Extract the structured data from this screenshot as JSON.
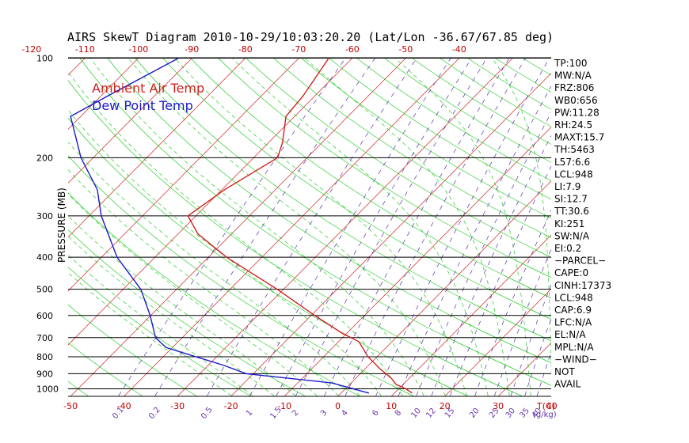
{
  "chart_data": {
    "type": "skew-t",
    "title": "AIRS SkewT Diagram 2010-10-29/10:03:20.20 (Lat/Lon -36.67/67.85 deg)",
    "ylabel": "PRESSURE (MB)",
    "xlabel_unit": "T(C)",
    "mixing_ratio_unit": "(g/kg)",
    "pressure_range": [
      1050,
      100
    ],
    "pressure_scale": "log",
    "pressure_ticks": [
      100,
      200,
      300,
      400,
      500,
      600,
      700,
      800,
      900,
      1000
    ],
    "temp_ticks_top": [
      -120,
      -110,
      -100,
      -90,
      -80,
      -70,
      -60,
      -50,
      -40
    ],
    "temp_ticks_bottom": [
      -50,
      -40,
      -30,
      -20,
      -10,
      0,
      10,
      20,
      30,
      40
    ],
    "mixing_ratio_labels": [
      "0.1",
      "0.2",
      "0.5",
      "1",
      "1.5",
      "2",
      "3",
      "4",
      "6",
      "8",
      "10",
      "12",
      "15",
      "20",
      "25",
      "30",
      "35",
      "40"
    ],
    "legend": [
      {
        "name": "Ambient Air Temp",
        "color": "#d02020"
      },
      {
        "name": "Dew Point Temp",
        "color": "#1a1acc"
      }
    ],
    "series": [
      {
        "name": "Ambient Air Temp",
        "color": "#d02020",
        "points": [
          {
            "p": 1030,
            "t": 13.3
          },
          {
            "p": 1000,
            "t": 11.3
          },
          {
            "p": 970,
            "t": 8.7
          },
          {
            "p": 930,
            "t": 6.7
          },
          {
            "p": 870,
            "t": 2.8
          },
          {
            "p": 800,
            "t": -1.7
          },
          {
            "p": 720,
            "t": -6.2
          },
          {
            "p": 680,
            "t": -10.8
          },
          {
            "p": 600,
            "t": -19.3
          },
          {
            "p": 500,
            "t": -31.2
          },
          {
            "p": 400,
            "t": -46.6
          },
          {
            "p": 340,
            "t": -56.3
          },
          {
            "p": 300,
            "t": -61.5
          },
          {
            "p": 250,
            "t": -59.5
          },
          {
            "p": 200,
            "t": -55.5
          },
          {
            "p": 180,
            "t": -57.4
          },
          {
            "p": 150,
            "t": -61.6
          },
          {
            "p": 130,
            "t": -62.2
          },
          {
            "p": 100,
            "t": -64.4
          }
        ]
      },
      {
        "name": "Dew Point Temp",
        "color": "#1a1acc",
        "points": [
          {
            "p": 1030,
            "t": 5.2
          },
          {
            "p": 960,
            "t": -3.6
          },
          {
            "p": 900,
            "t": -21.3
          },
          {
            "p": 850,
            "t": -27.0
          },
          {
            "p": 750,
            "t": -41.2
          },
          {
            "p": 700,
            "t": -45.0
          },
          {
            "p": 600,
            "t": -50.1
          },
          {
            "p": 500,
            "t": -56.7
          },
          {
            "p": 400,
            "t": -67.1
          },
          {
            "p": 300,
            "t": -77.7
          },
          {
            "p": 250,
            "t": -83.3
          },
          {
            "p": 200,
            "t": -92.3
          },
          {
            "p": 150,
            "t": -101.9
          },
          {
            "p": 130,
            "t": -98.7
          },
          {
            "p": 100,
            "t": -92.5
          }
        ]
      }
    ],
    "indices": [
      "TP:100",
      "MW:N/A",
      "FRZ:806",
      "WB0:656",
      "PW:11.28",
      "RH:24.5",
      "MAXT:15.7",
      "TH:5463",
      "L57:6.6",
      "LCL:948",
      "LI:7.9",
      "SI:12.7",
      "TT:30.6",
      "KI:251",
      "SW:N/A",
      "EI:0.2",
      "−PARCEL−",
      "CAPE:0",
      "CINH:17373",
      "LCL:948",
      "CAP:6.9",
      "LFC:N/A",
      "EL:N/A",
      "MPL:N/A",
      "−WIND−",
      "NOT",
      "AVAIL"
    ],
    "colors": {
      "isotherm": "#d02020",
      "dry_adiabat": "#22cc22",
      "moist_adiabat": "#22cc22",
      "mixing_ratio": "#5533aa",
      "pressure_line": "#000000"
    }
  }
}
